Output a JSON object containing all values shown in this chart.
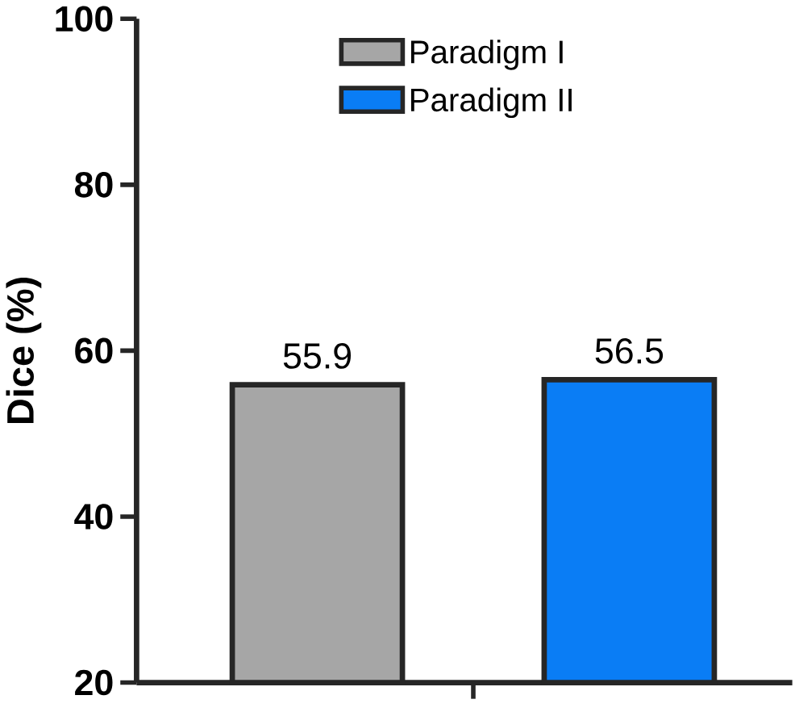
{
  "chart_data": {
    "type": "bar",
    "ylabel": "Dice (%)",
    "categories": [
      null
    ],
    "series": [
      {
        "name": "Paradigm I",
        "color": "#a6a6a6",
        "values": [
          55.9
        ]
      },
      {
        "name": "Paradigm II",
        "color": "#0a7df5",
        "values": [
          56.5
        ]
      }
    ],
    "ylim": [
      20,
      100
    ],
    "yticks": [
      20,
      40,
      60,
      80,
      100
    ],
    "data_labels": true,
    "legend": "top right"
  }
}
